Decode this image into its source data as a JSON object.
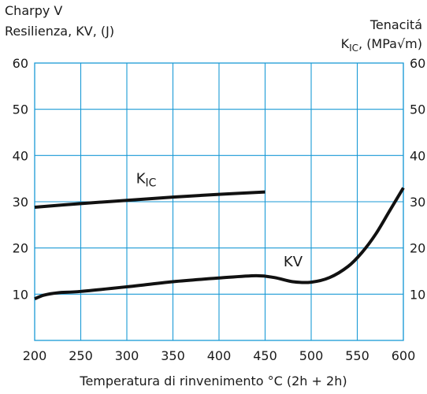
{
  "chart_data": {
    "type": "line",
    "title": "",
    "xlabel": "Temperatura di rinvenimento °C  (2h + 2h)",
    "ylabel_left": {
      "line1": "Charpy V",
      "line2": "Resilienza, KV, (J)"
    },
    "ylabel_right": {
      "line1": "Tenacitá",
      "line2_main": "K",
      "line2_sub": "IC",
      "line2_rest": ", (MPa√m)"
    },
    "xlim": [
      200,
      600
    ],
    "ylim": [
      0,
      60
    ],
    "x_ticks": [
      200,
      250,
      300,
      350,
      400,
      450,
      500,
      550,
      600
    ],
    "y_ticks": [
      10,
      20,
      30,
      40,
      50,
      60
    ],
    "grid": true,
    "series": [
      {
        "name": "KIC",
        "label_main": "K",
        "label_sub": "IC",
        "label_at": [
          310,
          34
        ],
        "x": [
          200,
          250,
          300,
          350,
          400,
          450
        ],
        "y": [
          28.8,
          29.6,
          30.3,
          31.0,
          31.6,
          32.1
        ]
      },
      {
        "name": "KV",
        "label_main": "KV",
        "label_at": [
          470,
          16
        ],
        "x": [
          200,
          210,
          225,
          250,
          300,
          350,
          400,
          440,
          460,
          480,
          500,
          520,
          540,
          555,
          570,
          585,
          600
        ],
        "y": [
          9.0,
          9.8,
          10.3,
          10.6,
          11.6,
          12.7,
          13.5,
          14.0,
          13.6,
          12.7,
          12.6,
          13.6,
          16.0,
          19.0,
          23.0,
          28.0,
          33.0
        ]
      }
    ]
  }
}
